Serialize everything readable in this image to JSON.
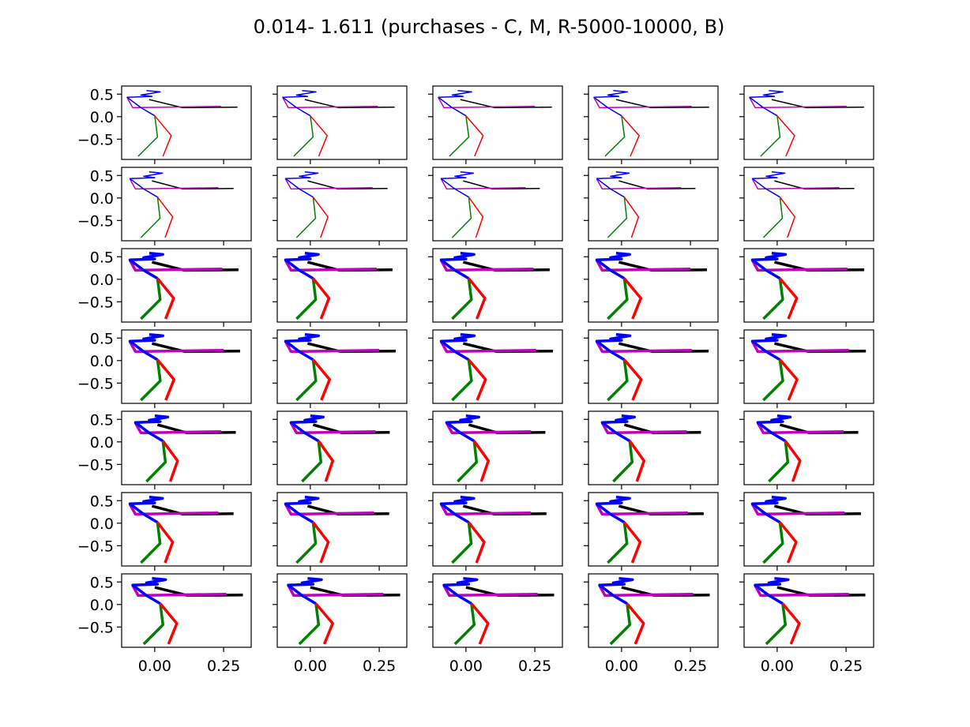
{
  "chart_data": {
    "type": "line",
    "title": "0.014- 1.611 (purchases - C, M, R-5000-10000, B)",
    "xlabel": "",
    "ylabel": "",
    "grid": false,
    "layout": {
      "rows": 7,
      "cols": 5
    },
    "xlim": [
      -0.12,
      0.35
    ],
    "ylim": [
      -0.95,
      0.68
    ],
    "x_ticks": [
      0.0,
      0.25
    ],
    "x_tick_labels": [
      "0.00",
      "0.25"
    ],
    "y_ticks": [
      0.5,
      0.0,
      -0.5
    ],
    "y_tick_labels": [
      "0.5",
      "0.0",
      "−0.5"
    ],
    "series": [
      {
        "color": "#000000",
        "points": [
          [
            -0.02,
            0.38
          ],
          [
            0.1,
            0.2
          ],
          [
            0.3,
            0.21
          ]
        ]
      },
      {
        "color": "#bf00bf",
        "points": [
          [
            -0.1,
            0.42
          ],
          [
            -0.08,
            0.2
          ],
          [
            0.24,
            0.23
          ]
        ]
      },
      {
        "color": "#0000ff",
        "points": [
          [
            -0.03,
            0.58
          ],
          [
            0.02,
            0.55
          ],
          [
            -0.05,
            0.48
          ],
          [
            -0.01,
            0.45
          ],
          [
            -0.1,
            0.43
          ],
          [
            -0.05,
            0.2
          ],
          [
            0.0,
            0.02
          ]
        ]
      },
      {
        "color": "#008000",
        "points": [
          [
            0.0,
            0.02
          ],
          [
            0.01,
            -0.45
          ],
          [
            -0.06,
            -0.88
          ]
        ]
      },
      {
        "color": "#ff0000",
        "points": [
          [
            0.0,
            0.02
          ],
          [
            0.06,
            -0.42
          ],
          [
            0.03,
            -0.88
          ]
        ]
      }
    ],
    "panels": [
      {
        "dx": 0.0,
        "sx": 1.0,
        "thick": 1.5
      },
      {
        "dx": 0.0,
        "sx": 1.02,
        "thick": 1.5
      },
      {
        "dx": 0.0,
        "sx": 1.04,
        "thick": 1.5
      },
      {
        "dx": 0.0,
        "sx": 1.06,
        "thick": 1.5
      },
      {
        "dx": 0.0,
        "sx": 1.05,
        "thick": 1.5
      },
      {
        "dx": 0.01,
        "sx": 0.92,
        "thick": 1.5
      },
      {
        "dx": 0.01,
        "sx": 0.9,
        "thick": 1.5
      },
      {
        "dx": 0.01,
        "sx": 0.86,
        "thick": 1.5
      },
      {
        "dx": 0.01,
        "sx": 0.86,
        "thick": 1.5
      },
      {
        "dx": 0.01,
        "sx": 0.9,
        "thick": 1.5
      },
      {
        "dx": 0.01,
        "sx": 0.98,
        "thick": 3.5
      },
      {
        "dx": 0.01,
        "sx": 0.96,
        "thick": 3.5
      },
      {
        "dx": 0.01,
        "sx": 0.98,
        "thick": 3.5
      },
      {
        "dx": 0.01,
        "sx": 1.0,
        "thick": 3.5
      },
      {
        "dx": 0.01,
        "sx": 1.02,
        "thick": 3.5
      },
      {
        "dx": 0.01,
        "sx": 1.0,
        "thick": 3.5
      },
      {
        "dx": 0.01,
        "sx": 1.0,
        "thick": 3.5
      },
      {
        "dx": 0.01,
        "sx": 1.02,
        "thick": 3.5
      },
      {
        "dx": 0.01,
        "sx": 1.02,
        "thick": 3.5
      },
      {
        "dx": 0.01,
        "sx": 1.04,
        "thick": 3.5
      },
      {
        "dx": 0.03,
        "sx": 0.88,
        "thick": 3.5
      },
      {
        "dx": 0.03,
        "sx": 0.86,
        "thick": 3.5
      },
      {
        "dx": 0.03,
        "sx": 0.86,
        "thick": 3.5
      },
      {
        "dx": 0.03,
        "sx": 0.86,
        "thick": 3.5
      },
      {
        "dx": 0.03,
        "sx": 0.88,
        "thick": 3.5
      },
      {
        "dx": 0.01,
        "sx": 0.92,
        "thick": 3.5
      },
      {
        "dx": 0.01,
        "sx": 0.92,
        "thick": 3.5
      },
      {
        "dx": 0.01,
        "sx": 0.94,
        "thick": 3.5
      },
      {
        "dx": 0.01,
        "sx": 0.96,
        "thick": 3.5
      },
      {
        "dx": 0.01,
        "sx": 0.98,
        "thick": 3.5
      },
      {
        "dx": 0.02,
        "sx": 1.0,
        "thick": 3.5
      },
      {
        "dx": 0.02,
        "sx": 1.02,
        "thick": 3.5
      },
      {
        "dx": 0.02,
        "sx": 1.0,
        "thick": 3.5
      },
      {
        "dx": 0.02,
        "sx": 1.0,
        "thick": 3.5
      },
      {
        "dx": 0.02,
        "sx": 1.0,
        "thick": 3.5
      }
    ]
  }
}
